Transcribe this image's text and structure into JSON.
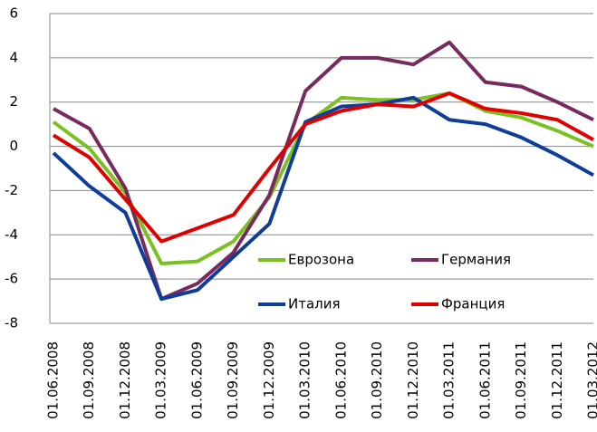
{
  "chart_data": {
    "type": "line",
    "categories": [
      "01.06.2008",
      "01.09.2008",
      "01.12.2008",
      "01.03.2009",
      "01.06.2009",
      "01.09.2009",
      "01.12.2009",
      "01.03.2010",
      "01.06.2010",
      "01.09.2010",
      "01.12.2010",
      "01.03.2011",
      "01.06.2011",
      "01.09.2011",
      "01.12.2011",
      "01.03.2012"
    ],
    "series": [
      {
        "name": "Еврозона",
        "color": "#7ac020",
        "values": [
          1.1,
          -0.1,
          -2.1,
          -5.3,
          -5.2,
          -4.3,
          -2.3,
          1.0,
          2.2,
          2.1,
          2.1,
          2.4,
          1.6,
          1.3,
          0.7,
          0.0
        ]
      },
      {
        "name": "Германия",
        "color": "#772a5e",
        "values": [
          1.7,
          0.8,
          -1.9,
          -6.9,
          -6.2,
          -4.8,
          -2.2,
          2.5,
          4.0,
          4.0,
          3.7,
          4.7,
          2.9,
          2.7,
          2.0,
          1.2
        ]
      },
      {
        "name": "Италия",
        "color": "#0f3e99",
        "values": [
          -0.3,
          -1.8,
          -3.0,
          -6.9,
          -6.5,
          -5.0,
          -3.5,
          1.1,
          1.8,
          1.9,
          2.2,
          1.2,
          1.0,
          0.4,
          -0.4,
          -1.3
        ]
      },
      {
        "name": "Франция",
        "color": "#e00000",
        "values": [
          0.5,
          -0.5,
          -2.4,
          -4.3,
          -3.7,
          -3.1,
          -1.0,
          1.0,
          1.6,
          1.9,
          1.8,
          2.4,
          1.7,
          1.5,
          1.2,
          0.3
        ]
      }
    ],
    "ylim": [
      -8,
      6
    ],
    "yticks": [
      -8,
      -6,
      -4,
      -2,
      0,
      2,
      4,
      6
    ],
    "grid": true,
    "legend": "lower right"
  }
}
